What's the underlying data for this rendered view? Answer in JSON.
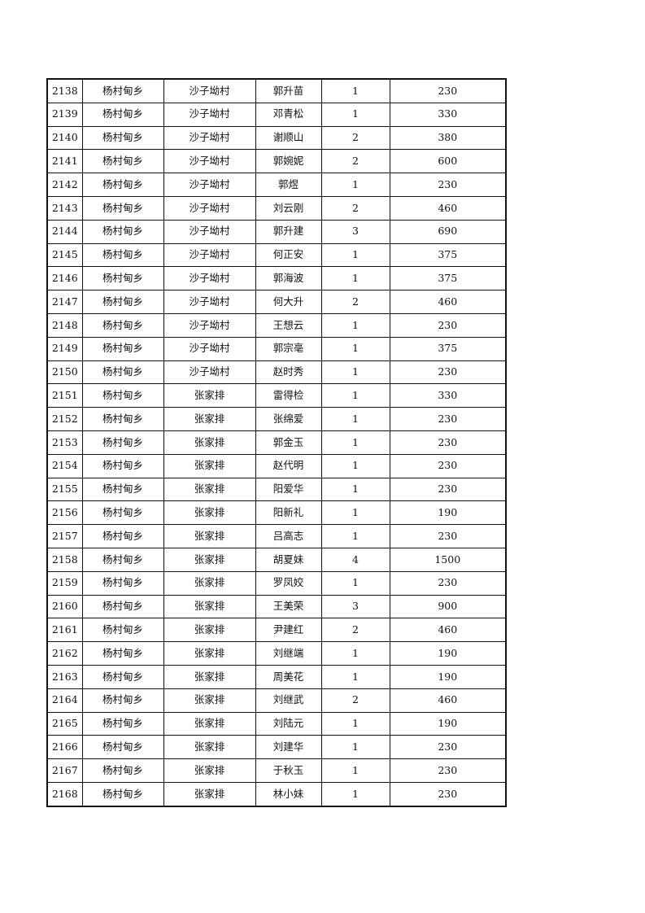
{
  "table": {
    "rows": [
      [
        "2138",
        "杨村甸乡",
        "沙子坳村",
        "郭升苗",
        "1",
        "230"
      ],
      [
        "2139",
        "杨村甸乡",
        "沙子坳村",
        "邓青松",
        "1",
        "330"
      ],
      [
        "2140",
        "杨村甸乡",
        "沙子坳村",
        "谢顺山",
        "2",
        "380"
      ],
      [
        "2141",
        "杨村甸乡",
        "沙子坳村",
        "郭婉妮",
        "2",
        "600"
      ],
      [
        "2142",
        "杨村甸乡",
        "沙子坳村",
        "郭煜",
        "1",
        "230"
      ],
      [
        "2143",
        "杨村甸乡",
        "沙子坳村",
        "刘云刚",
        "2",
        "460"
      ],
      [
        "2144",
        "杨村甸乡",
        "沙子坳村",
        "郭升建",
        "3",
        "690"
      ],
      [
        "2145",
        "杨村甸乡",
        "沙子坳村",
        "何正安",
        "1",
        "375"
      ],
      [
        "2146",
        "杨村甸乡",
        "沙子坳村",
        "郭海波",
        "1",
        "375"
      ],
      [
        "2147",
        "杨村甸乡",
        "沙子坳村",
        "何大升",
        "2",
        "460"
      ],
      [
        "2148",
        "杨村甸乡",
        "沙子坳村",
        "王想云",
        "1",
        "230"
      ],
      [
        "2149",
        "杨村甸乡",
        "沙子坳村",
        "郭宗亳",
        "1",
        "375"
      ],
      [
        "2150",
        "杨村甸乡",
        "沙子坳村",
        "赵时秀",
        "1",
        "230"
      ],
      [
        "2151",
        "杨村甸乡",
        "张家排",
        "雷得检",
        "1",
        "330"
      ],
      [
        "2152",
        "杨村甸乡",
        "张家排",
        "张绵爱",
        "1",
        "230"
      ],
      [
        "2153",
        "杨村甸乡",
        "张家排",
        "郭金玉",
        "1",
        "230"
      ],
      [
        "2154",
        "杨村甸乡",
        "张家排",
        "赵代明",
        "1",
        "230"
      ],
      [
        "2155",
        "杨村甸乡",
        "张家排",
        "阳爱华",
        "1",
        "230"
      ],
      [
        "2156",
        "杨村甸乡",
        "张家排",
        "阳新礼",
        "1",
        "190"
      ],
      [
        "2157",
        "杨村甸乡",
        "张家排",
        "吕高志",
        "1",
        "230"
      ],
      [
        "2158",
        "杨村甸乡",
        "张家排",
        "胡夏妹",
        "4",
        "1500"
      ],
      [
        "2159",
        "杨村甸乡",
        "张家排",
        "罗凤姣",
        "1",
        "230"
      ],
      [
        "2160",
        "杨村甸乡",
        "张家排",
        "王美荣",
        "3",
        "900"
      ],
      [
        "2161",
        "杨村甸乡",
        "张家排",
        "尹建红",
        "2",
        "460"
      ],
      [
        "2162",
        "杨村甸乡",
        "张家排",
        "刘继端",
        "1",
        "190"
      ],
      [
        "2163",
        "杨村甸乡",
        "张家排",
        "周美花",
        "1",
        "190"
      ],
      [
        "2164",
        "杨村甸乡",
        "张家排",
        "刘继武",
        "2",
        "460"
      ],
      [
        "2165",
        "杨村甸乡",
        "张家排",
        "刘陆元",
        "1",
        "190"
      ],
      [
        "2166",
        "杨村甸乡",
        "张家排",
        "刘建华",
        "1",
        "230"
      ],
      [
        "2167",
        "杨村甸乡",
        "张家排",
        "于秋玉",
        "1",
        "230"
      ],
      [
        "2168",
        "杨村甸乡",
        "张家排",
        "林小妹",
        "1",
        "230"
      ]
    ]
  }
}
